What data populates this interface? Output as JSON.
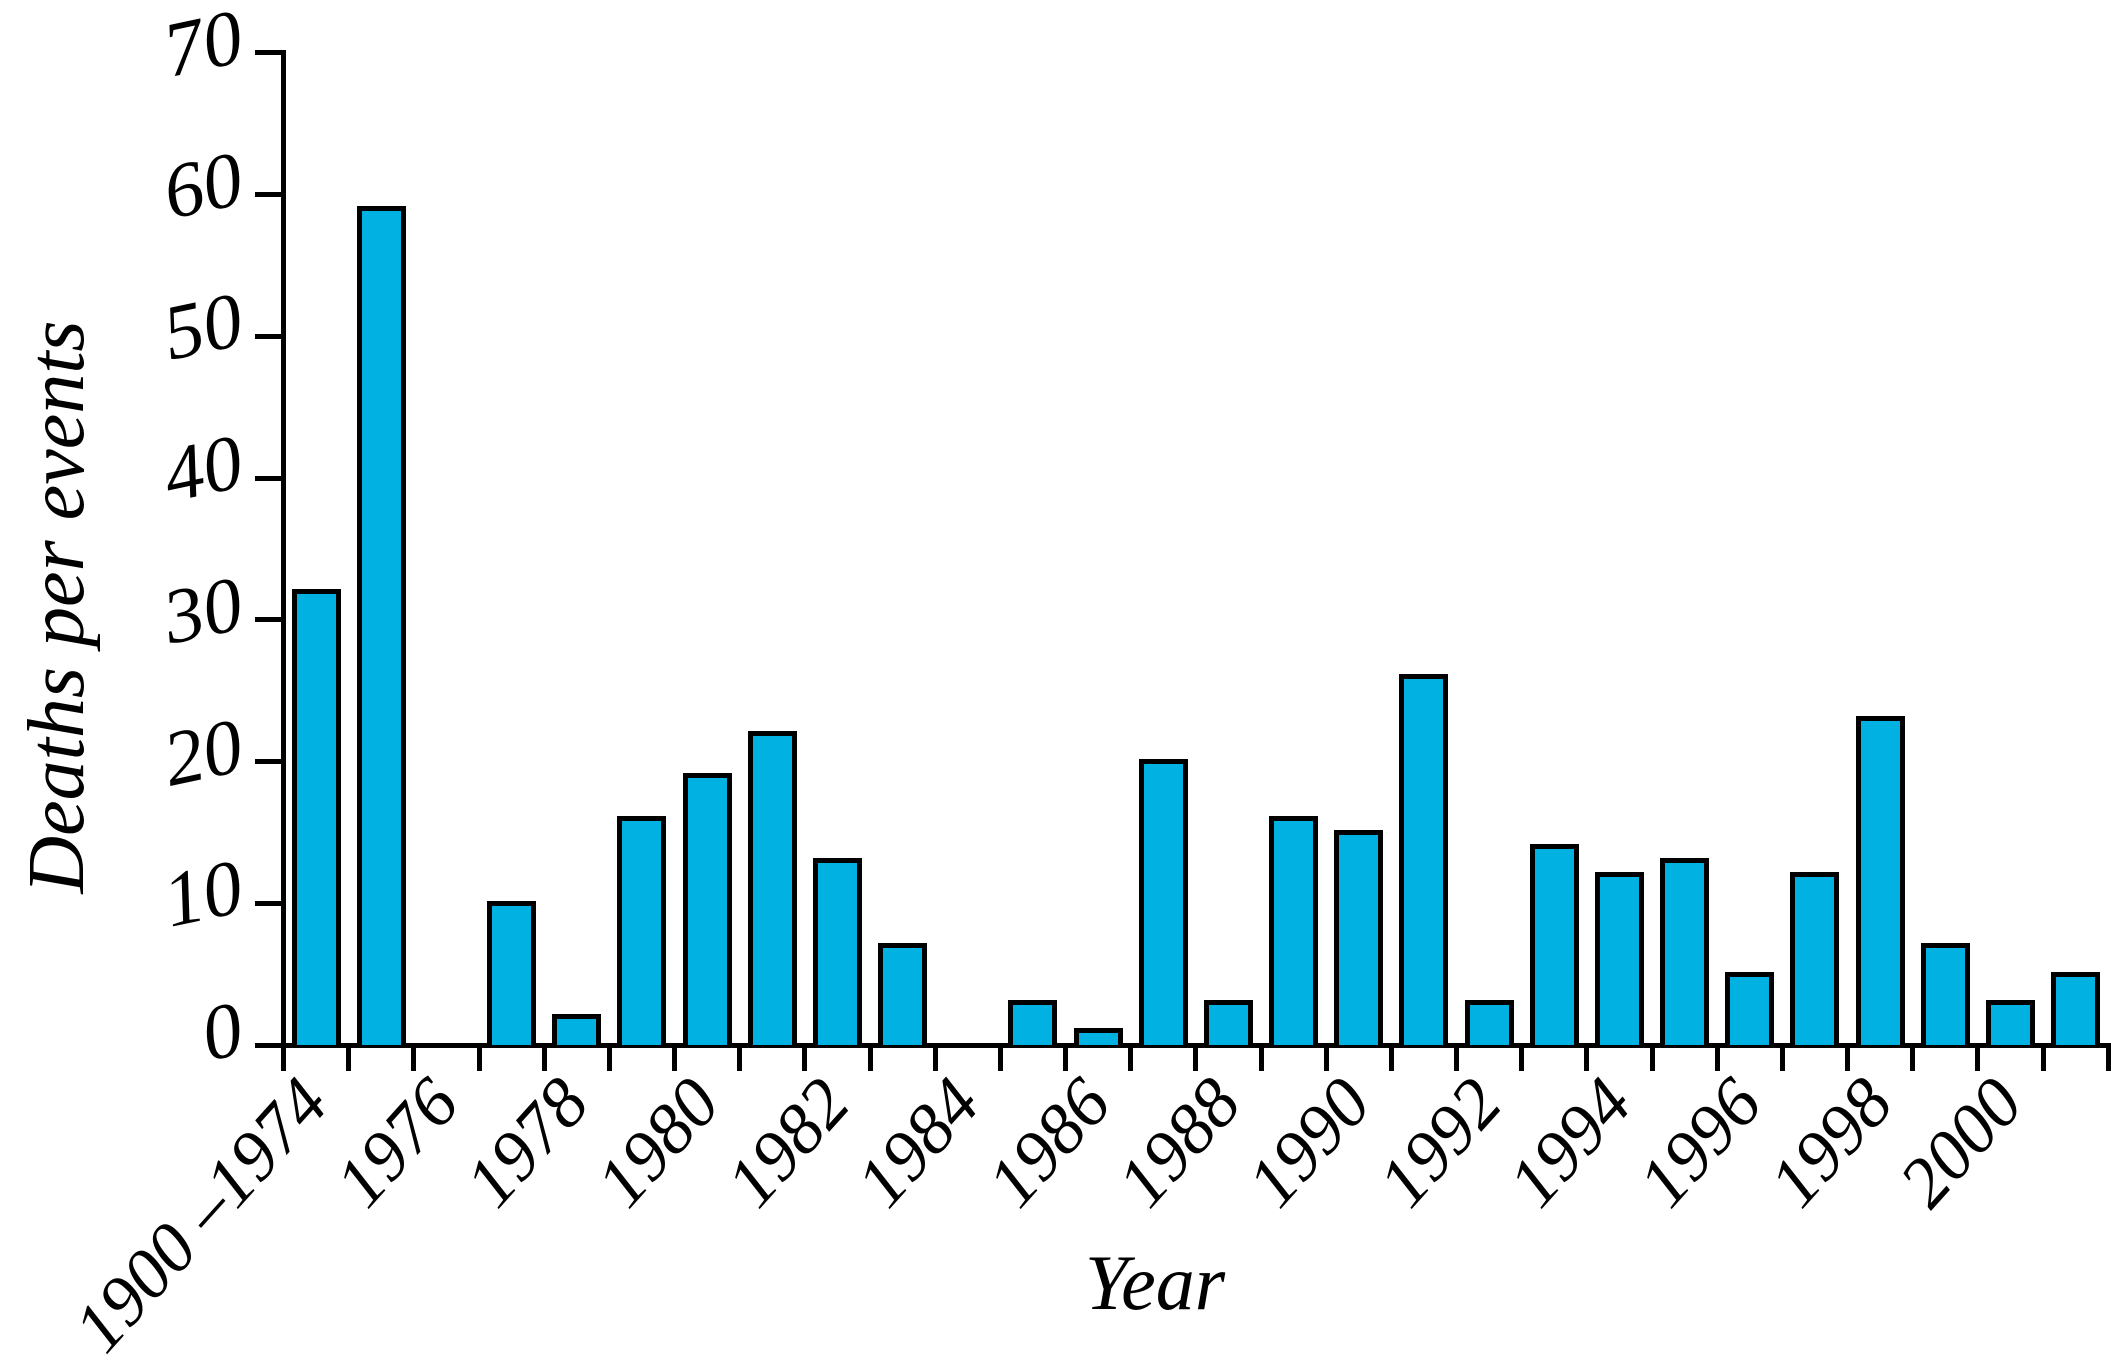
{
  "chart_data": {
    "type": "bar",
    "title": "",
    "xlabel": "Year",
    "ylabel": "Deaths per events",
    "ylim": [
      0,
      70
    ],
    "y_ticks": [
      0,
      10,
      20,
      30,
      40,
      50,
      60,
      70
    ],
    "x_tick_labels": [
      "1900 –1974",
      "1976",
      "1978",
      "1980",
      "1982",
      "1984",
      "1986",
      "1988",
      "1990",
      "1992",
      "1994",
      "1996",
      "1998",
      "2000"
    ],
    "grid": false,
    "legend": "none",
    "bar_color": "#00B1E2",
    "bar_border_color": "#000000",
    "axis_color": "#000000",
    "years": [
      1974,
      1975,
      1976,
      1977,
      1978,
      1979,
      1980,
      1981,
      1982,
      1983,
      1984,
      1985,
      1986,
      1987,
      1988,
      1989,
      1990,
      1991,
      1992,
      1993,
      1994,
      1995,
      1996,
      1997,
      1998,
      1999,
      2000,
      2001
    ],
    "values": [
      32,
      59,
      0,
      10,
      2,
      16,
      19,
      22,
      13,
      7,
      0,
      3,
      1,
      20,
      3,
      16,
      15,
      26,
      3,
      14,
      12,
      13,
      5,
      12,
      23,
      7,
      3,
      5
    ]
  }
}
